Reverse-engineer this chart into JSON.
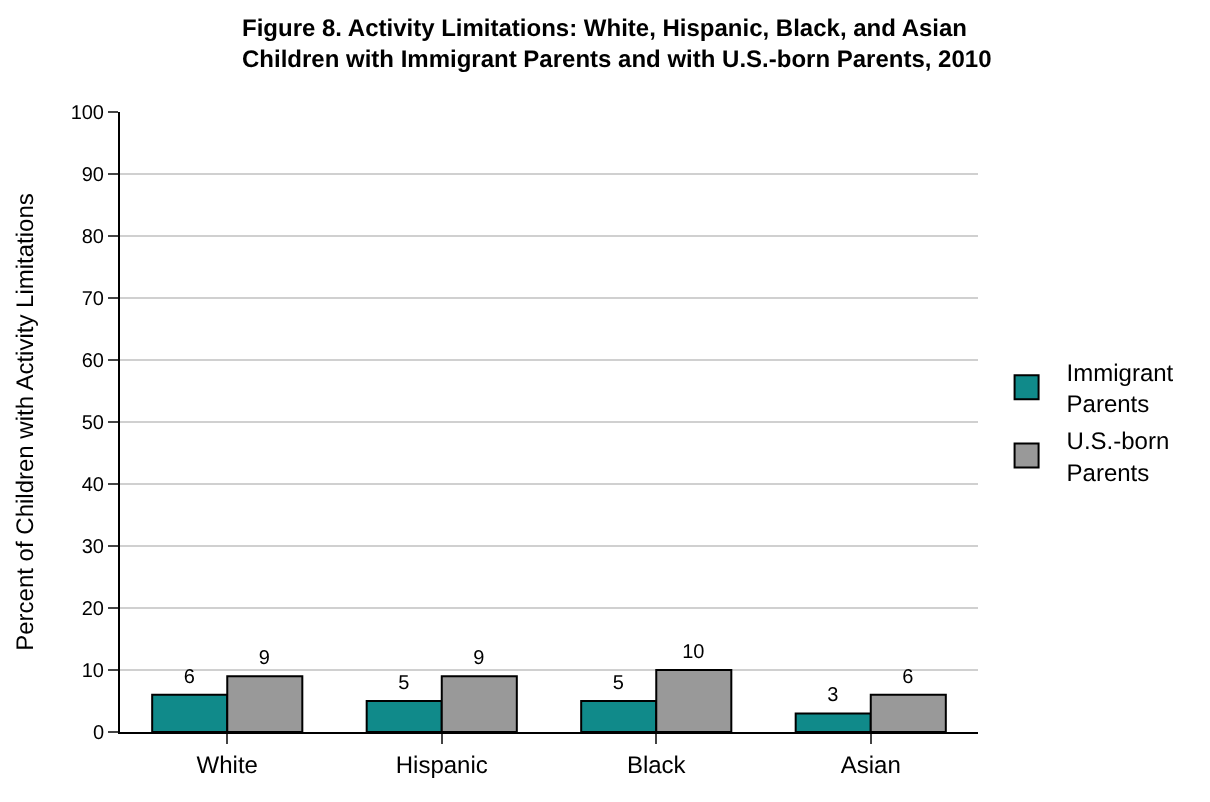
{
  "chart_data": {
    "type": "bar",
    "title": "Figure 8. Activity Limitations: White, Hispanic, Black, and Asian\nChildren with Immigrant Parents and with U.S.-born Parents, 2010",
    "ylabel": "Percent of Children with Activity Limitations",
    "categories": [
      "White",
      "Hispanic",
      "Black",
      "Asian"
    ],
    "series": [
      {
        "name": "Immigrant\nParents",
        "color": "#108a8a",
        "values": [
          6,
          5,
          5,
          3
        ]
      },
      {
        "name": "U.S.-born\nParents",
        "color": "#999999",
        "values": [
          9,
          9,
          10,
          6
        ]
      }
    ],
    "ylim": [
      0,
      100
    ],
    "yticks": [
      0,
      10,
      20,
      30,
      40,
      50,
      60,
      70,
      80,
      90,
      100
    ],
    "grid": "y",
    "legend": "right",
    "data_labels": true
  }
}
